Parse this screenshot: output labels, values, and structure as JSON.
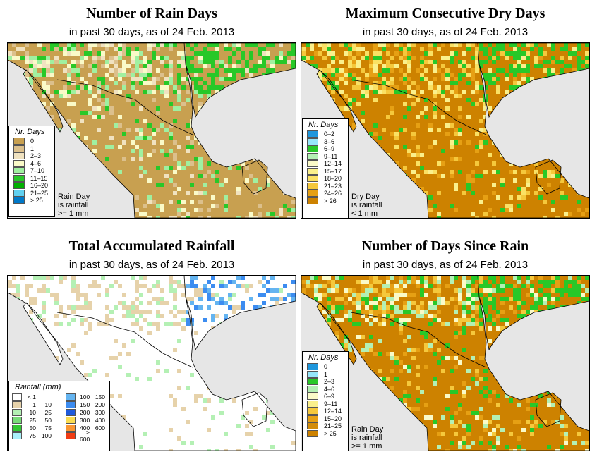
{
  "panels": [
    {
      "title": "Number of Rain Days",
      "subtitle": "in past 30 days, as of  24 Feb. 2013",
      "legend_title": "Nr. Days",
      "legend": [
        {
          "label": "0",
          "color": "#c8a050"
        },
        {
          "label": "1",
          "color": "#dcc08c"
        },
        {
          "label": "2–3",
          "color": "#f0e2c0"
        },
        {
          "label": "4–6",
          "color": "#fafac8"
        },
        {
          "label": "7–10",
          "color": "#a0f0a0"
        },
        {
          "label": "11–15",
          "color": "#28c828"
        },
        {
          "label": "16–20",
          "color": "#00b000"
        },
        {
          "label": "21–25",
          "color": "#60d0f0"
        },
        {
          "label": "> 25",
          "color": "#0078c8"
        }
      ],
      "note": [
        "Rain Day",
        "is rainfall",
        ">= 1 mm"
      ],
      "base_color": "#c8a050",
      "mix": [
        "#dcc08c",
        "#f0e2c0",
        "#fafac8",
        "#a0f0a0",
        "#28c828"
      ]
    },
    {
      "title": "Maximum Consecutive Dry Days",
      "subtitle": "in past 30 days, as of  24 Feb. 2013",
      "legend_title": "Nr. Days",
      "legend": [
        {
          "label": "0–2",
          "color": "#1e96dc"
        },
        {
          "label": "3–6",
          "color": "#96e6fa"
        },
        {
          "label": "6–9",
          "color": "#28c828"
        },
        {
          "label": "9–11",
          "color": "#b4f0b4"
        },
        {
          "label": "12–14",
          "color": "#fafac8"
        },
        {
          "label": "15–17",
          "color": "#faf08c"
        },
        {
          "label": "18–20",
          "color": "#fae164"
        },
        {
          "label": "21–23",
          "color": "#f5c83c"
        },
        {
          "label": "24–26",
          "color": "#e6a014"
        },
        {
          "label": "> 26",
          "color": "#cd8200"
        }
      ],
      "note": [
        "Dry Day",
        "is rainfall",
        "< 1 mm"
      ],
      "base_color": "#cd8200",
      "mix": [
        "#e6a014",
        "#f5c83c",
        "#fae164",
        "#faf08c",
        "#28c828"
      ]
    },
    {
      "title": "Total Accumulated Rainfall",
      "subtitle": "in past 30 days, as of  24 Feb. 2013",
      "legend_title": "Rainfall (mm)",
      "legend": [
        {
          "a": "< 1",
          "b": "",
          "color": "#ffffff"
        },
        {
          "a": "1",
          "b": "10",
          "color": "#e6d2aa"
        },
        {
          "a": "10",
          "b": "25",
          "color": "#b4f0b4"
        },
        {
          "a": "25",
          "b": "50",
          "color": "#78dc78"
        },
        {
          "a": "50",
          "b": "75",
          "color": "#32c832"
        },
        {
          "a": "75",
          "b": "100",
          "color": "#aaf0fa"
        },
        {
          "a": "100",
          "b": "150",
          "color": "#64b4f0"
        },
        {
          "a": "150",
          "b": "200",
          "color": "#3c8cf0"
        },
        {
          "a": "200",
          "b": "300",
          "color": "#1e5adc"
        },
        {
          "a": "300",
          "b": "400",
          "color": "#fadc50"
        },
        {
          "a": "400",
          "b": "600",
          "color": "#fa9632"
        },
        {
          "a": "> 600",
          "b": "",
          "color": "#f03c14"
        }
      ],
      "base_color": "#ffffff",
      "mix": [
        "#e6d2aa",
        "#ffffff",
        "#b4f0b4",
        "#e6d2aa"
      ]
    },
    {
      "title": "Number of Days Since Rain",
      "subtitle": "in past 30 days, as of  24 Feb. 2013",
      "legend_title": "Nr. Days",
      "legend": [
        {
          "label": "0",
          "color": "#1e96dc"
        },
        {
          "label": "1",
          "color": "#96e6fa"
        },
        {
          "label": "2–3",
          "color": "#28c828"
        },
        {
          "label": "4–6",
          "color": "#b4f0b4"
        },
        {
          "label": "6–9",
          "color": "#fafac8"
        },
        {
          "label": "9–11",
          "color": "#faf08c"
        },
        {
          "label": "12–14",
          "color": "#f5c83c"
        },
        {
          "label": "15–20",
          "color": "#e6a014"
        },
        {
          "label": "21–25",
          "color": "#d28c0a"
        },
        {
          "label": "> 25",
          "color": "#cd8200"
        }
      ],
      "note": [
        "Rain Day",
        "is rainfall",
        ">= 1 mm"
      ],
      "base_color": "#cd8200",
      "mix": [
        "#e6a014",
        "#f5c83c",
        "#b4f0b4",
        "#fafac8",
        "#28c828"
      ]
    }
  ]
}
